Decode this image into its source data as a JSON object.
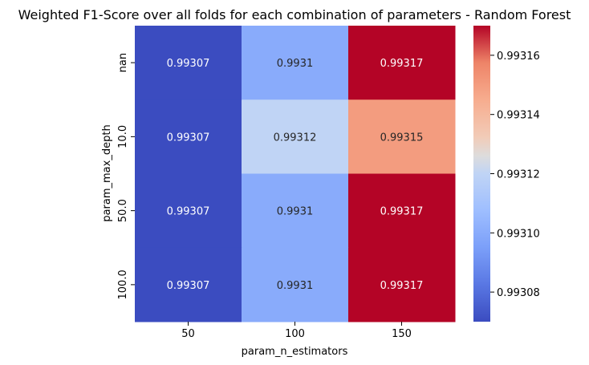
{
  "chart_data": {
    "type": "heatmap",
    "title": "Weighted F1-Score over all folds for each combination of parameters - Random Forest",
    "xlabel": "param_n_estimators",
    "ylabel": "param_max_depth",
    "x_categories": [
      "50",
      "100",
      "150"
    ],
    "y_categories": [
      "nan",
      "10.0",
      "50.0",
      "100.0"
    ],
    "values": [
      [
        0.99307,
        0.9931,
        0.99317
      ],
      [
        0.99307,
        0.99312,
        0.99315
      ],
      [
        0.99307,
        0.9931,
        0.99317
      ],
      [
        0.99307,
        0.9931,
        0.99317
      ]
    ],
    "value_labels": [
      [
        "0.99307",
        "0.9931",
        "0.99317"
      ],
      [
        "0.99307",
        "0.99312",
        "0.99315"
      ],
      [
        "0.99307",
        "0.9931",
        "0.99317"
      ],
      [
        "0.99307",
        "0.9931",
        "0.99317"
      ]
    ],
    "colormap": "coolwarm",
    "vmin": 0.99307,
    "vmax": 0.99317,
    "colorbar_ticks": [
      0.99308,
      0.9931,
      0.99312,
      0.99314,
      0.99316
    ],
    "colorbar_tick_labels": [
      "0.99308",
      "0.99310",
      "0.99312",
      "0.99314",
      "0.99316"
    ],
    "colors": {
      "low": "#3b4cc0",
      "mid": "#dddddd",
      "high": "#b40426"
    }
  }
}
